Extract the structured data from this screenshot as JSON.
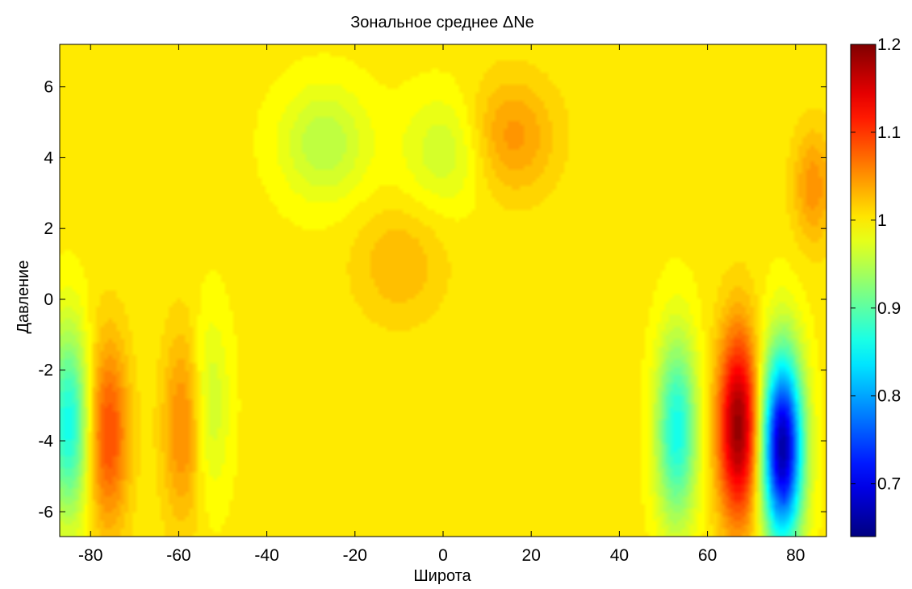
{
  "chart_data": {
    "type": "heatmap",
    "title": "Зональное среднее ΔNe",
    "xlabel": "Широта",
    "ylabel": "Давление",
    "xlim": [
      -87,
      87
    ],
    "ylim": [
      -6.7,
      7.2
    ],
    "xticks": [
      "-80",
      "-60",
      "-40",
      "-20",
      "0",
      "20",
      "40",
      "60",
      "80"
    ],
    "yticks": [
      "-6",
      "-4",
      "-2",
      "0",
      "2",
      "4",
      "6"
    ],
    "colorbar": {
      "colormap": "jet",
      "range": [
        0.64,
        1.2
      ],
      "ticks": [
        "0.7",
        "0.8",
        "0.9",
        "1",
        "1.1",
        "1.2"
      ]
    },
    "baseline_value": 1.0,
    "features": [
      {
        "lat": -76,
        "p": -3.8,
        "value": 1.09,
        "kind": "max"
      },
      {
        "lat": -59,
        "p": -3.6,
        "value": 1.06,
        "kind": "max"
      },
      {
        "lat": -85,
        "p": -3.5,
        "value": 0.86,
        "kind": "min"
      },
      {
        "lat": -53,
        "p": -3.0,
        "value": 0.96,
        "kind": "min"
      },
      {
        "lat": -27,
        "p": 4.4,
        "value": 0.95,
        "kind": "min"
      },
      {
        "lat": 1,
        "p": 4.2,
        "value": 0.96,
        "kind": "min"
      },
      {
        "lat": 15,
        "p": 4.6,
        "value": 1.05,
        "kind": "max"
      },
      {
        "lat": 53,
        "p": -3.7,
        "value": 0.86,
        "kind": "min"
      },
      {
        "lat": 67,
        "p": -3.6,
        "value": 1.19,
        "kind": "max"
      },
      {
        "lat": 77,
        "p": -4.2,
        "value": 0.66,
        "kind": "min"
      },
      {
        "lat": 84,
        "p": 3.2,
        "value": 1.05,
        "kind": "max"
      },
      {
        "lat": -10,
        "p": 1.0,
        "value": 1.03,
        "kind": "max"
      }
    ]
  }
}
